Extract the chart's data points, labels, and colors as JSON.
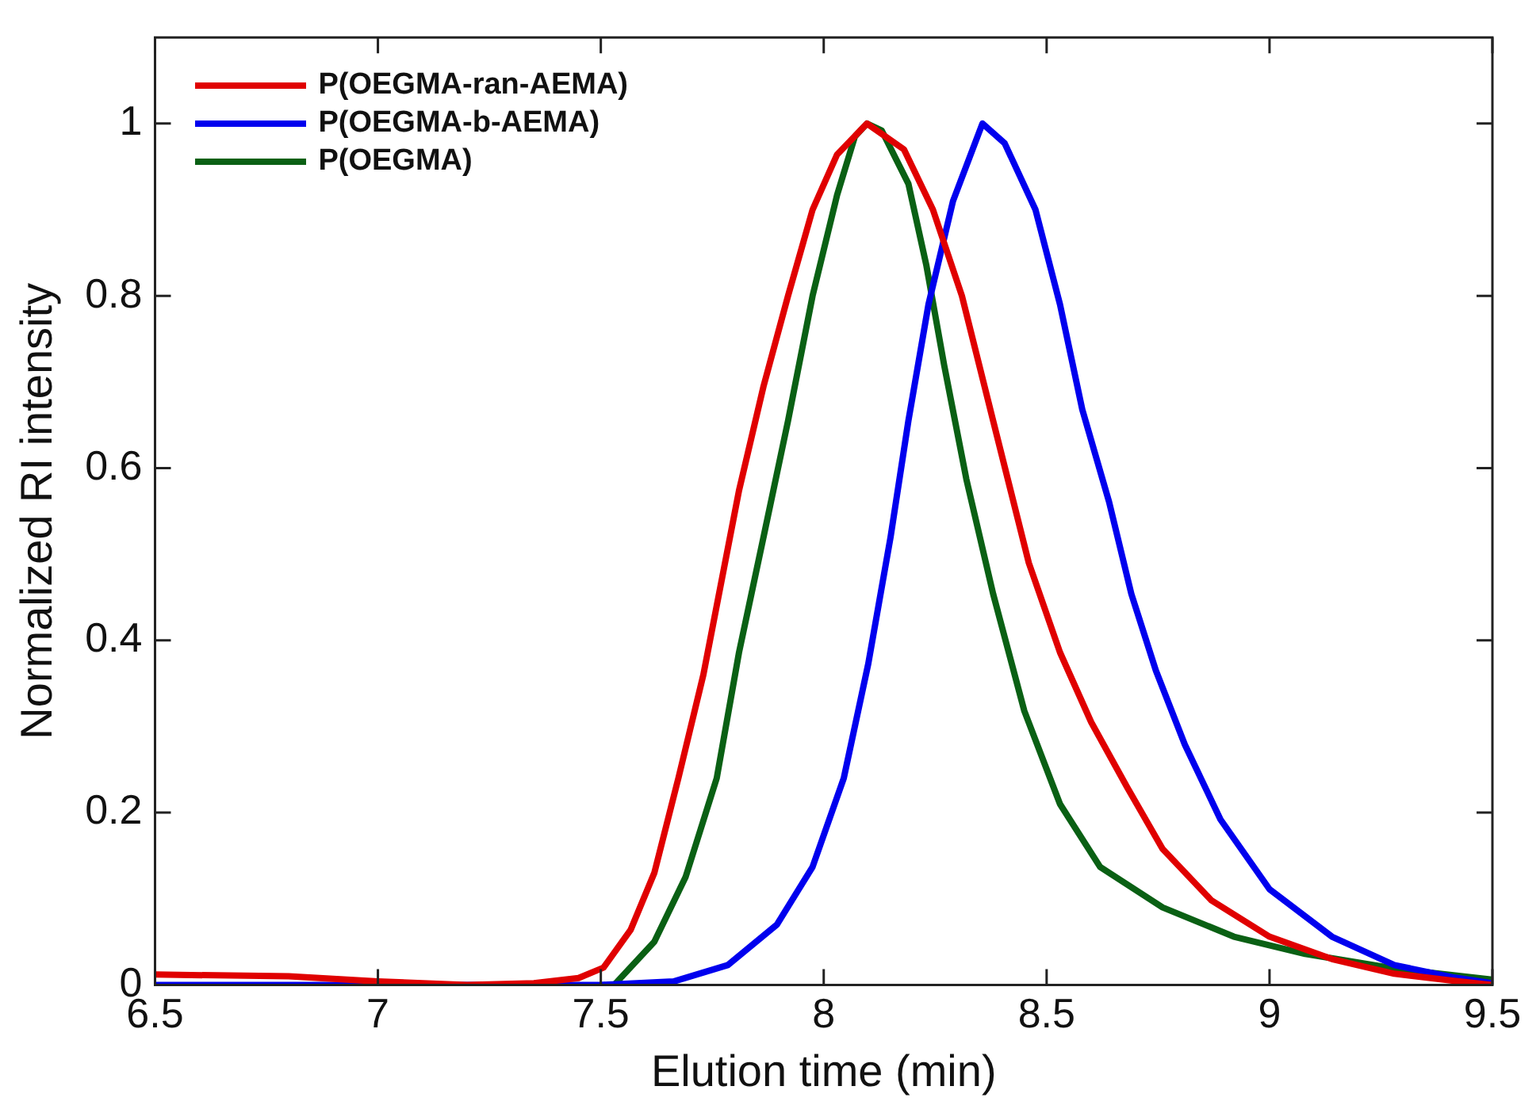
{
  "chart_data": {
    "type": "line",
    "xlabel": "Elution time (min)",
    "ylabel": "Normalized RI intensity",
    "xlim": [
      6.5,
      9.5
    ],
    "xticks": [
      6.5,
      7,
      7.5,
      8,
      8.5,
      9,
      9.5
    ],
    "ylim": [
      0,
      1.1
    ],
    "yticks": [
      0,
      0.2,
      0.4,
      0.6,
      0.8,
      1
    ],
    "grid": false,
    "legend": "top left",
    "marker": "none",
    "line_style": "solid",
    "series": [
      {
        "name": "P(OEGMA-ran-AEMA)",
        "color": "#e00000",
        "x": [
          6.5,
          6.8,
          7.0,
          7.2,
          7.35,
          7.45,
          7.506,
          7.567,
          7.62,
          7.674,
          7.73,
          7.77,
          7.81,
          7.865,
          7.92,
          7.975,
          8.03,
          8.097,
          8.18,
          8.245,
          8.31,
          8.38,
          8.46,
          8.53,
          8.6,
          8.68,
          8.76,
          8.87,
          9.0,
          9.14,
          9.28,
          9.41,
          9.5
        ],
        "values": [
          0.012,
          0.01,
          0.004,
          0.0,
          0.002,
          0.008,
          0.02,
          0.064,
          0.13,
          0.24,
          0.36,
          0.467,
          0.574,
          0.695,
          0.8,
          0.9,
          0.964,
          1.0,
          0.97,
          0.9,
          0.8,
          0.655,
          0.49,
          0.386,
          0.305,
          0.23,
          0.158,
          0.098,
          0.056,
          0.03,
          0.013,
          0.005,
          0.0
        ]
      },
      {
        "name": "P(OEGMA-b-AEMA)",
        "color": "#0000ee",
        "x": [
          6.5,
          7.0,
          7.5,
          7.663,
          7.785,
          7.895,
          7.975,
          8.045,
          8.1,
          8.15,
          8.19,
          8.235,
          8.29,
          8.356,
          8.406,
          8.475,
          8.53,
          8.58,
          8.64,
          8.69,
          8.745,
          8.81,
          8.89,
          9.0,
          9.14,
          9.28,
          9.41,
          9.5
        ],
        "values": [
          0.0,
          0.0,
          0.0,
          0.004,
          0.023,
          0.07,
          0.137,
          0.24,
          0.373,
          0.52,
          0.655,
          0.79,
          0.91,
          1.0,
          0.977,
          0.9,
          0.79,
          0.668,
          0.561,
          0.454,
          0.365,
          0.279,
          0.192,
          0.111,
          0.056,
          0.023,
          0.009,
          0.002
        ]
      },
      {
        "name": "P(OEGMA)",
        "color": "#0a6014",
        "x": [
          7.53,
          7.62,
          7.69,
          7.76,
          7.81,
          7.865,
          7.92,
          7.975,
          8.03,
          8.07,
          8.097,
          8.13,
          8.19,
          8.23,
          8.27,
          8.32,
          8.38,
          8.45,
          8.53,
          8.62,
          8.76,
          8.92,
          9.08,
          9.28,
          9.5
        ],
        "values": [
          0.0,
          0.05,
          0.125,
          0.24,
          0.386,
          0.52,
          0.655,
          0.8,
          0.917,
          0.985,
          1.0,
          0.992,
          0.93,
          0.836,
          0.72,
          0.587,
          0.454,
          0.318,
          0.21,
          0.137,
          0.09,
          0.056,
          0.036,
          0.019,
          0.006
        ]
      }
    ]
  }
}
